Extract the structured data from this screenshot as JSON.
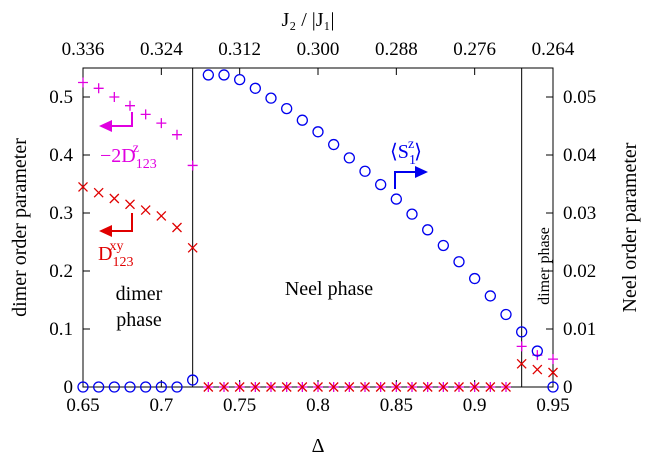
{
  "chart_data": {
    "type": "scatter",
    "xlabel": "Δ",
    "ylabel_left": "dimer order parameter",
    "ylabel_right": "Neel order parameter",
    "top_axis_label": "J₂ / |J₁|",
    "xlim": [
      0.65,
      0.95
    ],
    "ylim_left": [
      0,
      0.55
    ],
    "ylim_right": [
      0,
      0.055
    ],
    "x_ticks": [
      "0.65",
      "0.7",
      "0.75",
      "0.8",
      "0.85",
      "0.9",
      "0.95"
    ],
    "x_tick_values": [
      0.65,
      0.7,
      0.75,
      0.8,
      0.85,
      0.9,
      0.95
    ],
    "y_left_ticks": [
      "0",
      "0.1",
      "0.2",
      "0.3",
      "0.4",
      "0.5"
    ],
    "y_left_tick_values": [
      0,
      0.1,
      0.2,
      0.3,
      0.4,
      0.5
    ],
    "y_right_ticks": [
      "0",
      "0.01",
      "0.02",
      "0.03",
      "0.04",
      "0.05"
    ],
    "y_right_tick_values": [
      0,
      0.01,
      0.02,
      0.03,
      0.04,
      0.05
    ],
    "top_ticks": [
      "0.336",
      "0.324",
      "0.312",
      "0.300",
      "0.288",
      "0.276",
      "0.264"
    ],
    "top_tick_delta": [
      0.65,
      0.7,
      0.75,
      0.8,
      0.85,
      0.9,
      0.95
    ],
    "phase_boundaries": [
      0.72,
      0.93
    ],
    "phases": [
      {
        "label_line1": "dimer",
        "label_line2": "phase"
      },
      {
        "label": "Neel phase"
      },
      {
        "label": "dimer phase"
      }
    ],
    "series": [
      {
        "name": "−2D",
        "name_sub": "123",
        "name_sup": "z",
        "color": "#e000e0",
        "marker": "plus",
        "axis": "left",
        "x": [
          0.65,
          0.66,
          0.67,
          0.68,
          0.69,
          0.7,
          0.71,
          0.72,
          0.73,
          0.74,
          0.75,
          0.76,
          0.77,
          0.78,
          0.79,
          0.8,
          0.81,
          0.82,
          0.83,
          0.84,
          0.85,
          0.86,
          0.87,
          0.88,
          0.89,
          0.9,
          0.91,
          0.92,
          0.93,
          0.94,
          0.95
        ],
        "y": [
          0.525,
          0.515,
          0.5,
          0.485,
          0.47,
          0.455,
          0.435,
          0.382,
          0.0,
          0.0,
          0.0,
          0.0,
          0.0,
          0.0,
          0.0,
          0.0,
          0.0,
          0.0,
          0.0,
          0.0,
          0.0,
          0.0,
          0.0,
          0.0,
          0.0,
          0.0,
          0.0,
          0.0,
          0.07,
          0.055,
          0.048
        ]
      },
      {
        "name": "D",
        "name_sub": "123",
        "name_sup": "xy",
        "color": "#e00000",
        "marker": "cross",
        "axis": "left",
        "x": [
          0.65,
          0.66,
          0.67,
          0.68,
          0.69,
          0.7,
          0.71,
          0.72,
          0.73,
          0.74,
          0.75,
          0.76,
          0.77,
          0.78,
          0.79,
          0.8,
          0.81,
          0.82,
          0.83,
          0.84,
          0.85,
          0.86,
          0.87,
          0.88,
          0.89,
          0.9,
          0.91,
          0.92,
          0.93,
          0.94,
          0.95
        ],
        "y": [
          0.345,
          0.335,
          0.325,
          0.315,
          0.305,
          0.295,
          0.275,
          0.24,
          0.0,
          0.0,
          0.0,
          0.0,
          0.0,
          0.0,
          0.0,
          0.0,
          0.0,
          0.0,
          0.0,
          0.0,
          0.0,
          0.0,
          0.0,
          0.0,
          0.0,
          0.0,
          0.0,
          0.0,
          0.04,
          0.03,
          0.025
        ]
      },
      {
        "name": "⟨S",
        "name_sub": "1",
        "name_sup": "z",
        "name_suffix": "⟩",
        "color": "#0000ee",
        "marker": "circle",
        "axis": "right",
        "x": [
          0.65,
          0.66,
          0.67,
          0.68,
          0.69,
          0.7,
          0.71,
          0.72,
          0.73,
          0.74,
          0.75,
          0.76,
          0.77,
          0.78,
          0.79,
          0.8,
          0.81,
          0.82,
          0.83,
          0.84,
          0.85,
          0.86,
          0.87,
          0.88,
          0.89,
          0.9,
          0.91,
          0.92,
          0.93,
          0.94,
          0.95
        ],
        "y": [
          0.0,
          0.0,
          0.0,
          0.0,
          0.0,
          0.0,
          0.0,
          0.0012,
          0.0538,
          0.0538,
          0.053,
          0.0515,
          0.0498,
          0.048,
          0.046,
          0.044,
          0.0418,
          0.0395,
          0.0372,
          0.0349,
          0.0324,
          0.0298,
          0.0271,
          0.0244,
          0.0216,
          0.0187,
          0.0157,
          0.0125,
          0.0095,
          0.0062,
          0.0
        ]
      }
    ]
  }
}
